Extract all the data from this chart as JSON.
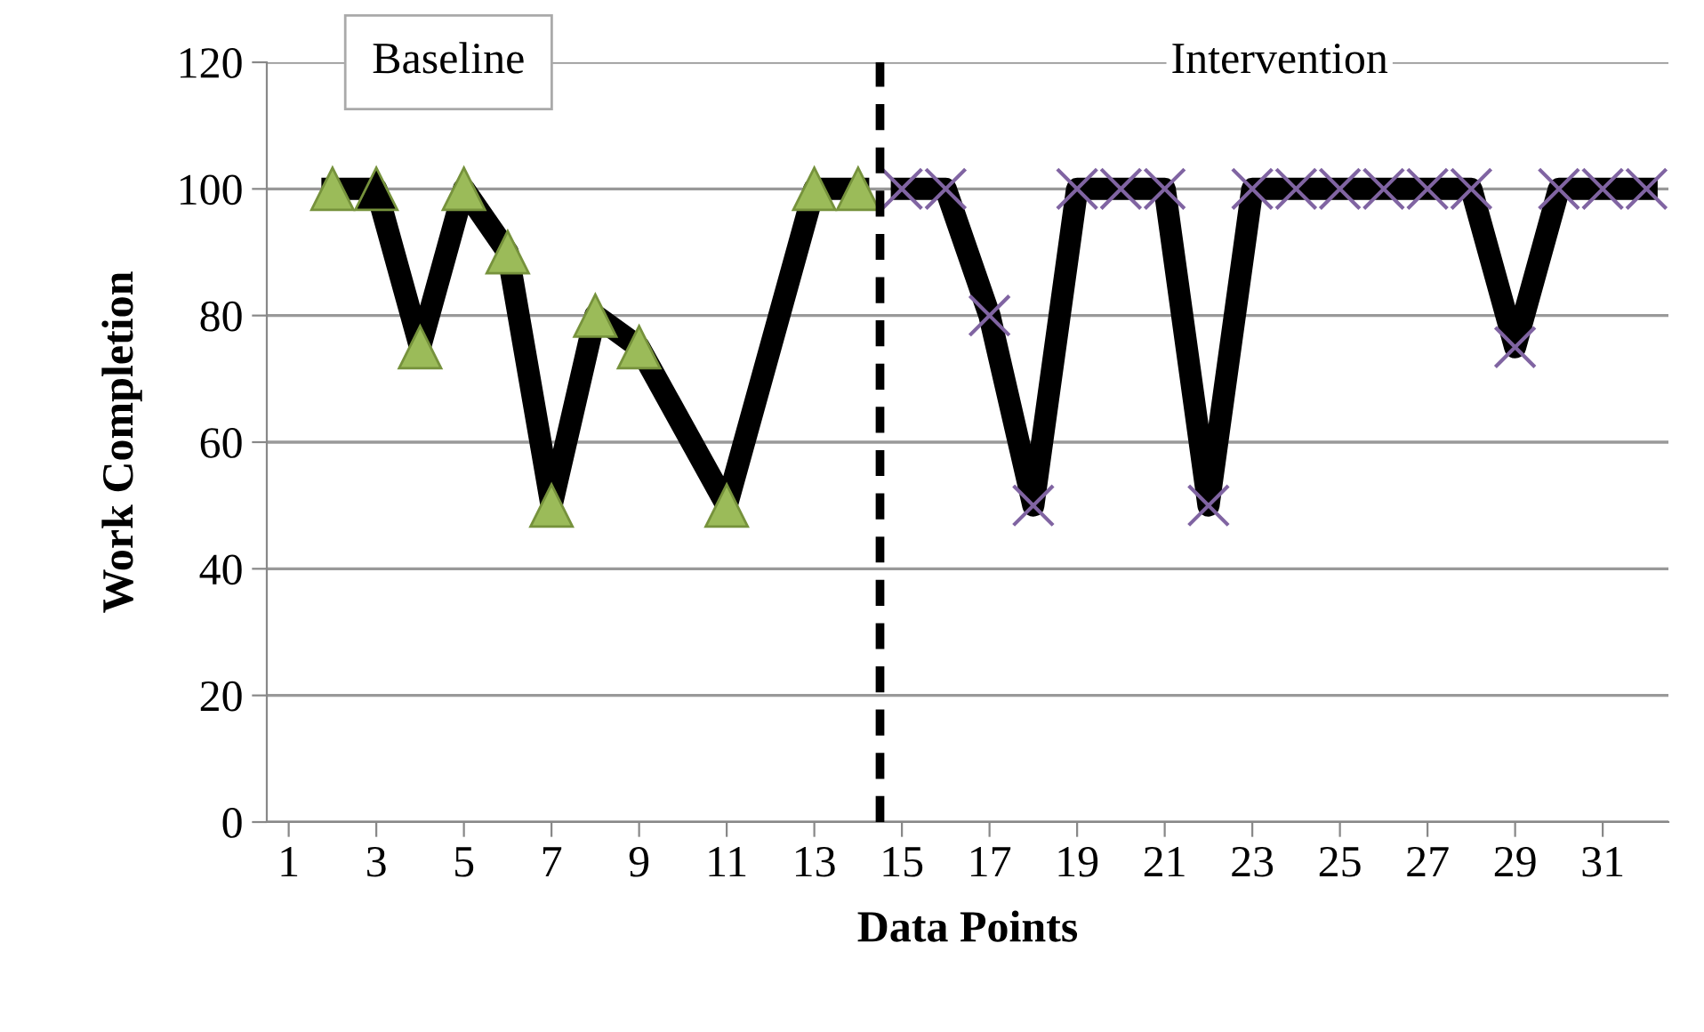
{
  "chart_data": {
    "type": "line",
    "xlabel": "Data Points",
    "ylabel": "Work Completion",
    "xlim": [
      0.5,
      32.5
    ],
    "xticks": [
      1,
      3,
      5,
      7,
      9,
      11,
      13,
      15,
      17,
      19,
      21,
      23,
      25,
      27,
      29,
      31
    ],
    "ylim": [
      0,
      120
    ],
    "yticks": [
      0,
      20,
      40,
      60,
      80,
      100,
      120
    ],
    "grid": "y",
    "line_style": "solid",
    "series": [
      {
        "color": "#000000",
        "marker": "triangle",
        "colors": [
          "#9bbb59",
          "#000000",
          "#9bbb59",
          "#9bbb59",
          "#9bbb59",
          "#9bbb59",
          "#9bbb59",
          "#9bbb59",
          "#9bbb59",
          "#9bbb59",
          "#9bbb59"
        ],
        "x": [
          2,
          3,
          4,
          5,
          6,
          7,
          8,
          9,
          11,
          13,
          14
        ],
        "values": [
          100,
          100,
          75,
          100,
          90,
          50,
          80,
          75,
          50,
          100,
          100
        ]
      },
      {
        "color": "#000000",
        "marker": "cross",
        "colors": [
          "#8064a2",
          "#8064a2",
          "#8064a2",
          "#8064a2",
          "#8064a2",
          "#8064a2",
          "#8064a2",
          "#8064a2",
          "#8064a2",
          "#8064a2",
          "#8064a2",
          "#8064a2",
          "#8064a2",
          "#8064a2",
          "#8064a2",
          "#8064a2",
          "#8064a2",
          "#8064a2"
        ],
        "x": [
          15,
          16,
          17,
          18,
          19,
          20,
          21,
          22,
          23,
          24,
          25,
          26,
          27,
          28,
          29,
          30,
          31,
          32
        ],
        "values": [
          100,
          100,
          80,
          50,
          100,
          100,
          100,
          50,
          100,
          100,
          100,
          100,
          100,
          100,
          75,
          100,
          100,
          100
        ]
      }
    ],
    "ref_lines": [
      {
        "axis": "x",
        "value": 14.5,
        "color": "#000000",
        "line_style": "dashed"
      }
    ],
    "annotations": [
      "Baseline",
      "Intervention"
    ]
  }
}
